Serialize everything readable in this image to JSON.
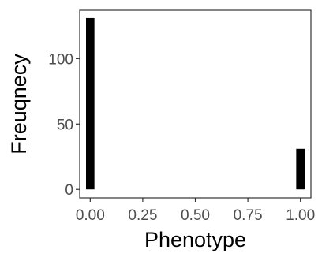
{
  "chart_data": {
    "type": "bar",
    "title": "",
    "xlabel": "Phenotype",
    "ylabel": "Freuqnecy",
    "x_ticks": [
      "0.00",
      "0.25",
      "0.50",
      "0.75",
      "1.00"
    ],
    "y_ticks": [
      "0",
      "50",
      "100"
    ],
    "x_tick_values": [
      0,
      0.25,
      0.5,
      0.75,
      1
    ],
    "y_tick_values": [
      0,
      50,
      100
    ],
    "xlim": [
      -0.05,
      1.05
    ],
    "ylim": [
      -6.5,
      137
    ],
    "bin_width": 0.04,
    "bars": [
      {
        "x": 0,
        "value": 131
      },
      {
        "x": 1,
        "value": 31
      }
    ],
    "bar_color": "#000000",
    "grid": false,
    "legend": "none"
  }
}
